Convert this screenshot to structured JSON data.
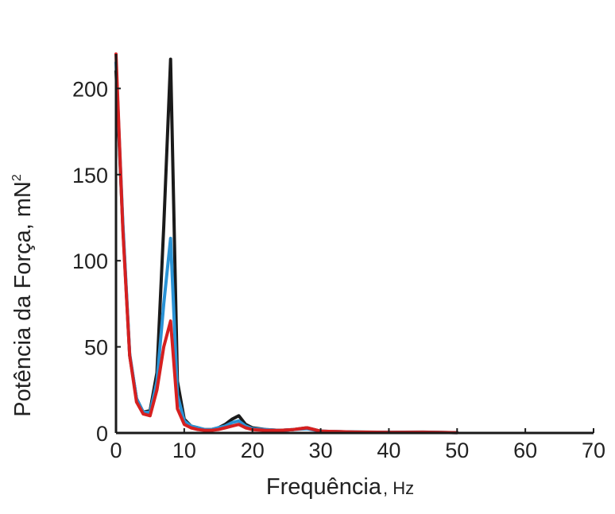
{
  "chart_data": {
    "type": "line",
    "title": "",
    "xlabel": "Frequência",
    "xlabel_unit": "Hz",
    "ylabel": "Potência da Força, mN",
    "ylabel_superscript": "2",
    "xlim": [
      0,
      70
    ],
    "ylim": [
      0,
      220
    ],
    "xticks": [
      0,
      10,
      20,
      30,
      40,
      50,
      60,
      70
    ],
    "yticks": [
      0,
      50,
      100,
      150,
      200
    ],
    "grid": false,
    "legend": "none",
    "series": [
      {
        "color": "#1a1a1a",
        "x": [
          0,
          1,
          2,
          3,
          4,
          5,
          6,
          7,
          8,
          9,
          10,
          11,
          12,
          13,
          14,
          15,
          16,
          17,
          18,
          19,
          20,
          22,
          24,
          26,
          28,
          30,
          35,
          40,
          45,
          50
        ],
        "y": [
          210,
          120,
          45,
          20,
          12,
          13,
          35,
          120,
          217,
          30,
          8,
          4,
          3,
          2,
          2,
          3,
          5,
          8,
          10,
          5,
          3,
          2,
          1.5,
          2,
          3,
          1,
          0.6,
          0.4,
          0.5,
          0.2
        ]
      },
      {
        "color": "#2a93d5",
        "x": [
          0,
          1,
          2,
          3,
          4,
          5,
          6,
          7,
          8,
          9,
          10,
          11,
          12,
          13,
          14,
          15,
          16,
          17,
          18,
          19,
          20,
          22,
          24,
          26,
          28,
          30,
          35,
          40,
          45,
          50
        ],
        "y": [
          215,
          122,
          46,
          20,
          12,
          12,
          30,
          75,
          113,
          22,
          7,
          4,
          3,
          2,
          2,
          3,
          4,
          6,
          7,
          4,
          2.5,
          2,
          1.5,
          2,
          2.5,
          1,
          0.5,
          0.3,
          0.4,
          0.2
        ]
      },
      {
        "color": "#d62020",
        "x": [
          0,
          1,
          2,
          3,
          4,
          5,
          6,
          7,
          8,
          9,
          10,
          11,
          12,
          13,
          14,
          15,
          16,
          17,
          18,
          19,
          20,
          22,
          24,
          26,
          28,
          30,
          35,
          40,
          45,
          50
        ],
        "y": [
          220,
          118,
          45,
          18,
          11,
          10,
          25,
          50,
          65,
          14,
          5,
          3,
          2,
          1.5,
          1.5,
          2,
          3,
          4,
          5,
          3,
          2,
          1.5,
          1.5,
          2,
          3,
          1,
          0.5,
          0.3,
          0.4,
          0.2
        ]
      }
    ]
  }
}
